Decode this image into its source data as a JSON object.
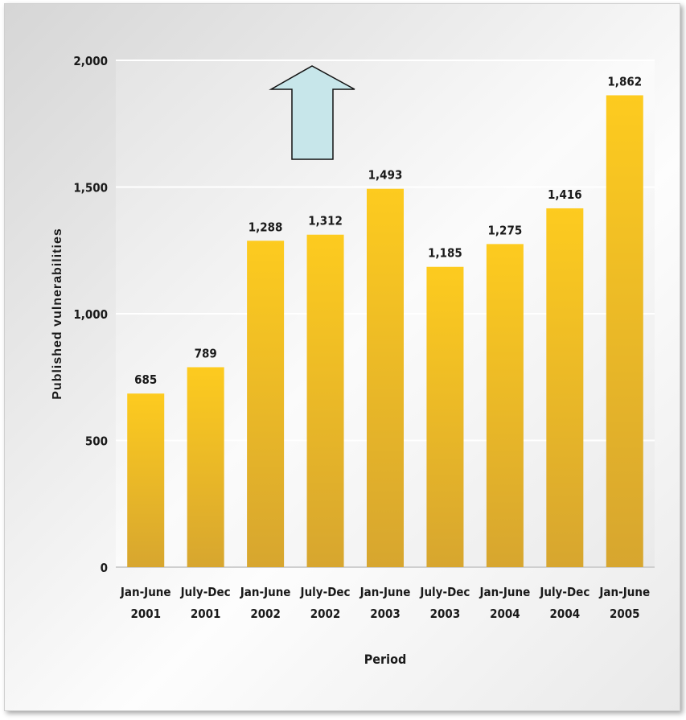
{
  "chart_data": {
    "type": "bar",
    "categories": [
      [
        "Jan-June",
        "2001"
      ],
      [
        "July-Dec",
        "2001"
      ],
      [
        "Jan-June",
        "2002"
      ],
      [
        "July-Dec",
        "2002"
      ],
      [
        "Jan-June",
        "2003"
      ],
      [
        "July-Dec",
        "2003"
      ],
      [
        "Jan-June",
        "2004"
      ],
      [
        "July-Dec",
        "2004"
      ],
      [
        "Jan-June",
        "2005"
      ]
    ],
    "values": [
      685,
      789,
      1288,
      1312,
      1493,
      1185,
      1275,
      1416,
      1862
    ],
    "data_labels": [
      "685",
      "789",
      "1,288",
      "1,312",
      "1,493",
      "1,185",
      "1,275",
      "1,416",
      "1,862"
    ],
    "title": "",
    "xlabel": "Period",
    "ylabel": "Published vulnerabilities",
    "ylim": [
      0,
      2000
    ],
    "yticks": [
      0,
      500,
      1000,
      1500,
      2000
    ],
    "ytick_labels": [
      "0",
      "500",
      "1,000",
      "1,500",
      "2,000"
    ],
    "grid": true,
    "bar_color": "#f2c022",
    "annotation": "up-arrow-icon",
    "annotation_color": "#c7e6ea"
  }
}
